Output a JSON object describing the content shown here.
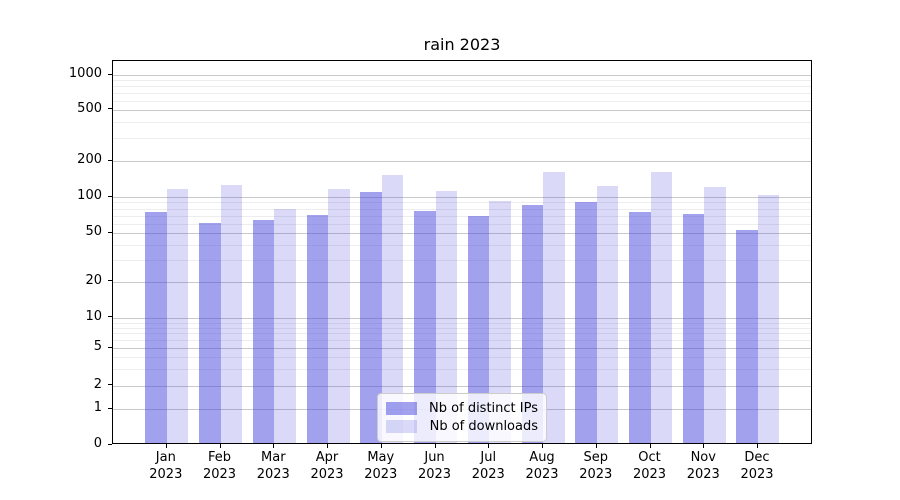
{
  "chart_data": {
    "type": "bar",
    "title": "rain 2023",
    "categories": [
      "Jan",
      "Feb",
      "Mar",
      "Apr",
      "May",
      "Jun",
      "Jul",
      "Aug",
      "Sep",
      "Oct",
      "Nov",
      "Dec"
    ],
    "year_label": "2023",
    "series": [
      {
        "name": "Nb of distinct IPs",
        "color": "rgba(68,68,221,0.5)",
        "values": [
          72,
          58,
          62,
          68,
          106,
          74,
          67,
          83,
          88,
          72,
          70,
          51
        ]
      },
      {
        "name": "Nb of downloads",
        "color": "rgba(68,68,221,0.2)",
        "values": [
          112,
          121,
          77,
          112,
          146,
          108,
          89,
          155,
          119,
          155,
          116,
          100
        ]
      }
    ],
    "yscale": "symlog",
    "ylim": [
      0,
      1300
    ],
    "yticks_major": [
      0,
      1,
      2,
      5,
      10,
      20,
      50,
      100,
      200,
      500,
      1000
    ],
    "yticks_minor": [
      3,
      4,
      6,
      7,
      8,
      9,
      30,
      40,
      60,
      70,
      80,
      90,
      300,
      400,
      600,
      700,
      800,
      900
    ],
    "grid": true,
    "legend_position": "lower center",
    "colors": {
      "grid_major": "#c9c9c9",
      "grid_minor": "#ededed",
      "axis": "#000000"
    }
  }
}
